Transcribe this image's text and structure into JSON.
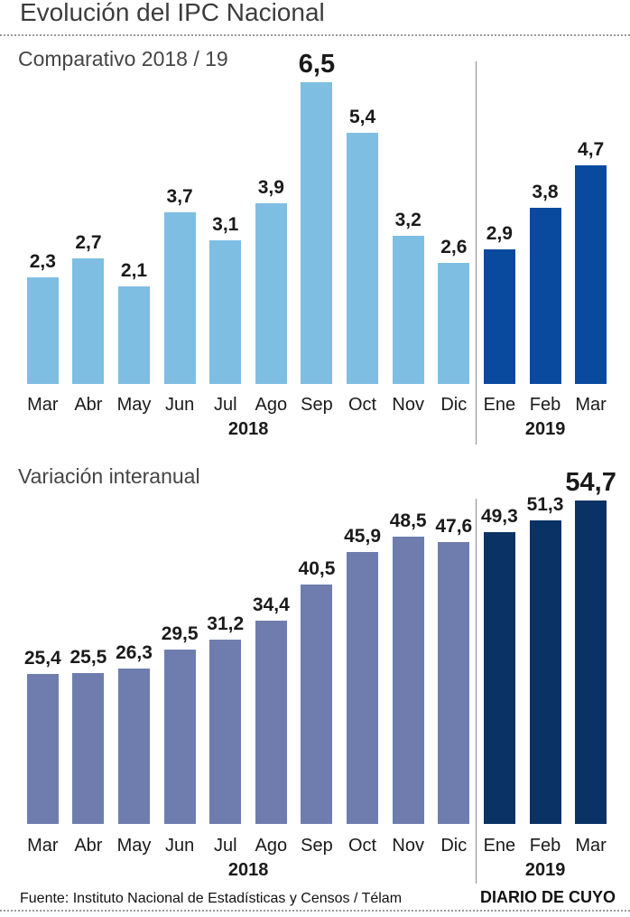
{
  "header": {
    "title": "Evolución del IPC Nacional"
  },
  "chart_data": [
    {
      "type": "bar",
      "title": "Comparativo 2018 / 19",
      "categories": [
        "Mar",
        "Abr",
        "May",
        "Jun",
        "Jul",
        "Ago",
        "Sep",
        "Oct",
        "Nov",
        "Dic",
        "Ene",
        "Feb",
        "Mar"
      ],
      "values": [
        2.3,
        2.7,
        2.1,
        3.7,
        3.1,
        3.9,
        6.5,
        5.4,
        3.2,
        2.6,
        2.9,
        3.8,
        4.7
      ],
      "value_labels": [
        "2,3",
        "2,7",
        "2,1",
        "3,7",
        "3,1",
        "3,9",
        "6,5",
        "5,4",
        "3,2",
        "2,6",
        "2,9",
        "3,8",
        "4,7"
      ],
      "group_split_index": 10,
      "year_groups": [
        {
          "label": "2018",
          "count": 10
        },
        {
          "label": "2019",
          "count": 3
        }
      ],
      "colors": {
        "bars_2018": "#7EBEE3",
        "bars_2019": "#0A4A9E"
      },
      "ylim": [
        0,
        7
      ],
      "grid": false,
      "legend": "none",
      "highlighted_value_label": "6,5"
    },
    {
      "type": "bar",
      "title": "Variación interanual",
      "categories": [
        "Mar",
        "Abr",
        "May",
        "Jun",
        "Jul",
        "Ago",
        "Sep",
        "Oct",
        "Nov",
        "Dic",
        "Ene",
        "Feb",
        "Mar"
      ],
      "values": [
        25.4,
        25.5,
        26.3,
        29.5,
        31.2,
        34.4,
        40.5,
        45.9,
        48.5,
        47.6,
        49.3,
        51.3,
        54.7
      ],
      "value_labels": [
        "25,4",
        "25,5",
        "26,3",
        "29,5",
        "31,2",
        "34,4",
        "40,5",
        "45,9",
        "48,5",
        "47,6",
        "49,3",
        "51,3",
        "54,7"
      ],
      "group_split_index": 10,
      "year_groups": [
        {
          "label": "2018",
          "count": 10
        },
        {
          "label": "2019",
          "count": 3
        }
      ],
      "colors": {
        "bars_2018": "#6F7DAE",
        "bars_2019": "#0B3264"
      },
      "ylim": [
        0,
        57
      ],
      "grid": false,
      "legend": "none",
      "highlighted_value_label": "54,7"
    }
  ],
  "footer": {
    "source": "Fuente: Instituto Nacional de Estadísticas y Censos / Télam",
    "brand": "DIARIO DE CUYO"
  }
}
